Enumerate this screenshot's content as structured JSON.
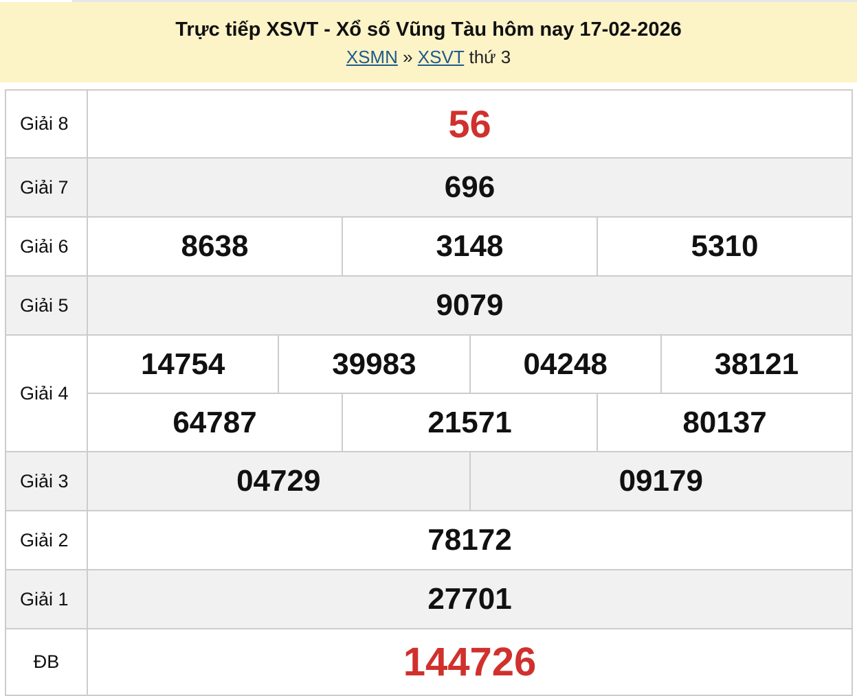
{
  "header": {
    "title": "Trực tiếp XSVT - Xổ số Vũng Tàu hôm nay 17-02-2026",
    "breadcrumb": {
      "link1": "XSMN",
      "separator": "»",
      "link2": "XSVT",
      "suffix": "thứ 3"
    }
  },
  "colors": {
    "header_bg": "#fcf3c7",
    "highlight": "#d0312d",
    "link": "#1f5a8a"
  },
  "results": [
    {
      "label": "Giải 8",
      "rows": [
        [
          "56"
        ]
      ]
    },
    {
      "label": "Giải 7",
      "rows": [
        [
          "696"
        ]
      ]
    },
    {
      "label": "Giải 6",
      "rows": [
        [
          "8638",
          "3148",
          "5310"
        ]
      ]
    },
    {
      "label": "Giải 5",
      "rows": [
        [
          "9079"
        ]
      ]
    },
    {
      "label": "Giải 4",
      "rows": [
        [
          "14754",
          "39983",
          "04248",
          "38121"
        ],
        [
          "64787",
          "21571",
          "80137"
        ]
      ]
    },
    {
      "label": "Giải 3",
      "rows": [
        [
          "04729",
          "09179"
        ]
      ]
    },
    {
      "label": "Giải 2",
      "rows": [
        [
          "78172"
        ]
      ]
    },
    {
      "label": "Giải 1",
      "rows": [
        [
          "27701"
        ]
      ]
    },
    {
      "label": "ĐB",
      "rows": [
        [
          "144726"
        ]
      ]
    }
  ]
}
